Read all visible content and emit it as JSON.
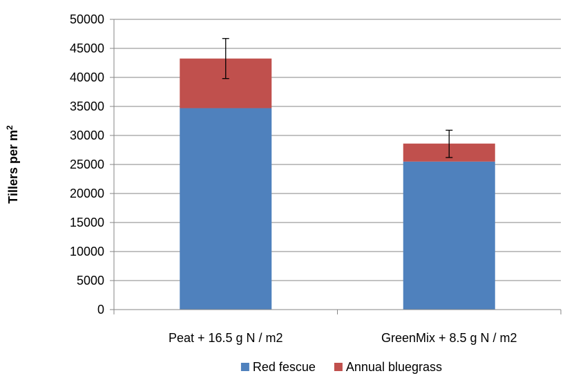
{
  "chart_data": {
    "type": "bar",
    "stacked": true,
    "title": "",
    "xlabel": "",
    "ylabel": "Tillers per m",
    "ylabel_superscript": "2",
    "ylim": [
      0,
      50000
    ],
    "yticks": [
      0,
      5000,
      10000,
      15000,
      20000,
      25000,
      30000,
      35000,
      40000,
      45000,
      50000
    ],
    "grid": true,
    "legend_position": "bottom",
    "categories": [
      "Peat + 16.5 g N / m2",
      "GreenMix + 8.5 g N / m2"
    ],
    "series": [
      {
        "name": "Red fescue",
        "color": "#4f81bd",
        "values": [
          34700,
          25500
        ]
      },
      {
        "name": "Annual bluegrass",
        "color": "#c0504d",
        "values": [
          8550,
          3100
        ]
      }
    ],
    "error_bars": [
      {
        "low": 39800,
        "high": 46700
      },
      {
        "low": 26200,
        "high": 30900
      }
    ]
  }
}
